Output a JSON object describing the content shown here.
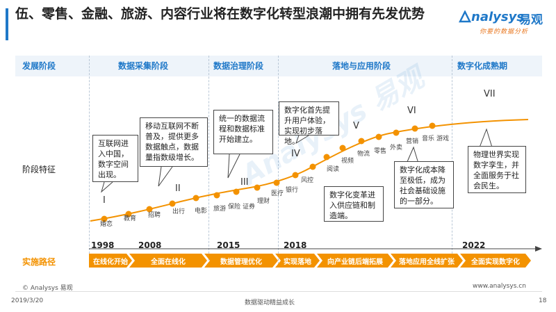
{
  "header": {
    "title": "伍、零售、金融、旅游、内容行业将在数字化转型浪潮中拥有先发优势",
    "logo_en": "nalysys",
    "logo_cn": "易观",
    "logo_sub": "你要的数据分析"
  },
  "phases": {
    "row_label": "发展阶段",
    "items": [
      "数据采集阶段",
      "数据治理阶段",
      "落地与应用阶段",
      "数字化成熟期"
    ]
  },
  "stage_features": {
    "row_label": "阶段特征",
    "numerals": [
      "I",
      "II",
      "III",
      "IV",
      "V",
      "VI",
      "VII"
    ],
    "boxes": [
      "互联网进入中国，数字空间出现。",
      "移动互联网不断普及，提供更多数据触点，数据量指数级增长。",
      "统一的数据流程和数据标准开始建立。",
      "数字化首先提升用户体验，实现初步落地。",
      "数字化变革进入供应链和制造端。",
      "数字化成本降至极低，成为社会基础设施的一部分。",
      "物理世界实现数字孪生，并全面服务于社会民生。"
    ],
    "industries": [
      "婚恋",
      "教育",
      "招聘",
      "出行",
      "电影",
      "旅游",
      "保险",
      "证券",
      "理财",
      "医疗",
      "银行",
      "风控",
      "阅读",
      "视频",
      "物流",
      "零售",
      "外卖",
      "营销",
      "音乐",
      "游戏"
    ]
  },
  "timeline": {
    "years": [
      "1998",
      "2008",
      "2015",
      "2018",
      "2022"
    ]
  },
  "path": {
    "row_label": "实施路径",
    "steps": [
      "在线化开始",
      "全面在线化",
      "数据管理优化",
      "实现落地",
      "向产业链后端拓展",
      "落地应用全线扩张",
      "全面实现数字化"
    ]
  },
  "footer": {
    "copyright": "© Analysys 易观",
    "website": "www.analysys.cn",
    "date": "2019/3/20",
    "center": "数据驱动精益成长",
    "page": "18"
  },
  "colors": {
    "accent": "#1f78c8",
    "orange": "#f39200"
  }
}
